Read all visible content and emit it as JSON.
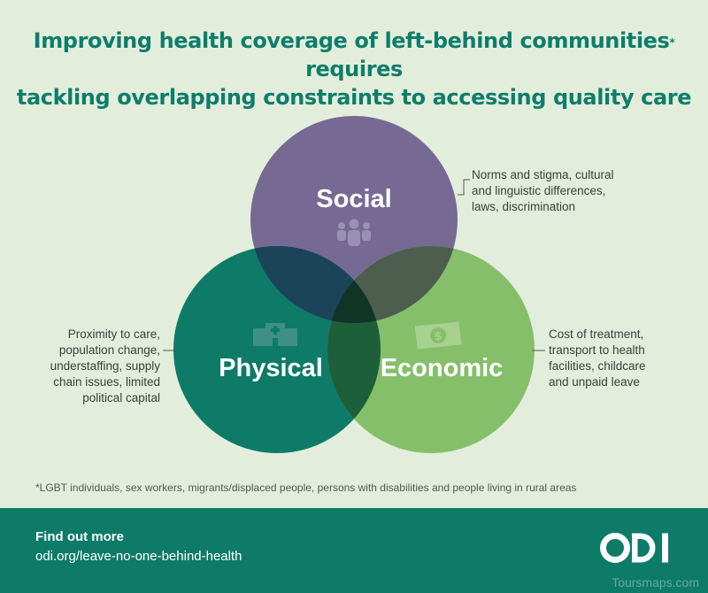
{
  "title": {
    "line1": "Improving health coverage of left-behind communities",
    "asterisk": "*",
    "line1_tail": " requires",
    "line2": "tackling overlapping constraints to accessing quality care"
  },
  "circles": {
    "social": {
      "label": "Social",
      "icon": "people-icon",
      "color": "#766a94",
      "note": [
        "Norms and stigma, cultural",
        "and linguistic differences,",
        "laws, discrimination"
      ]
    },
    "physical": {
      "label": "Physical",
      "icon": "hospital-icon",
      "color": "#0d7b68",
      "note": [
        "Proximity to care,",
        "population change,",
        "understaffing, supply",
        "chain issues, limited",
        "political capital"
      ]
    },
    "economic": {
      "label": "Economic",
      "icon": "banknote-icon",
      "color": "#86bf6a",
      "note": [
        "Cost of treatment,",
        "transport to health",
        "facilities, childcare",
        "and unpaid leave"
      ]
    }
  },
  "footnote": "*LGBT individuals, sex workers, migrants/displaced people, persons with disabilities and people living in rural areas",
  "footer": {
    "find_out_more": "Find out more",
    "url": "odi.org/leave-no-one-behind-health",
    "logo": "odi-logo"
  },
  "watermark": "Toursmaps.com"
}
